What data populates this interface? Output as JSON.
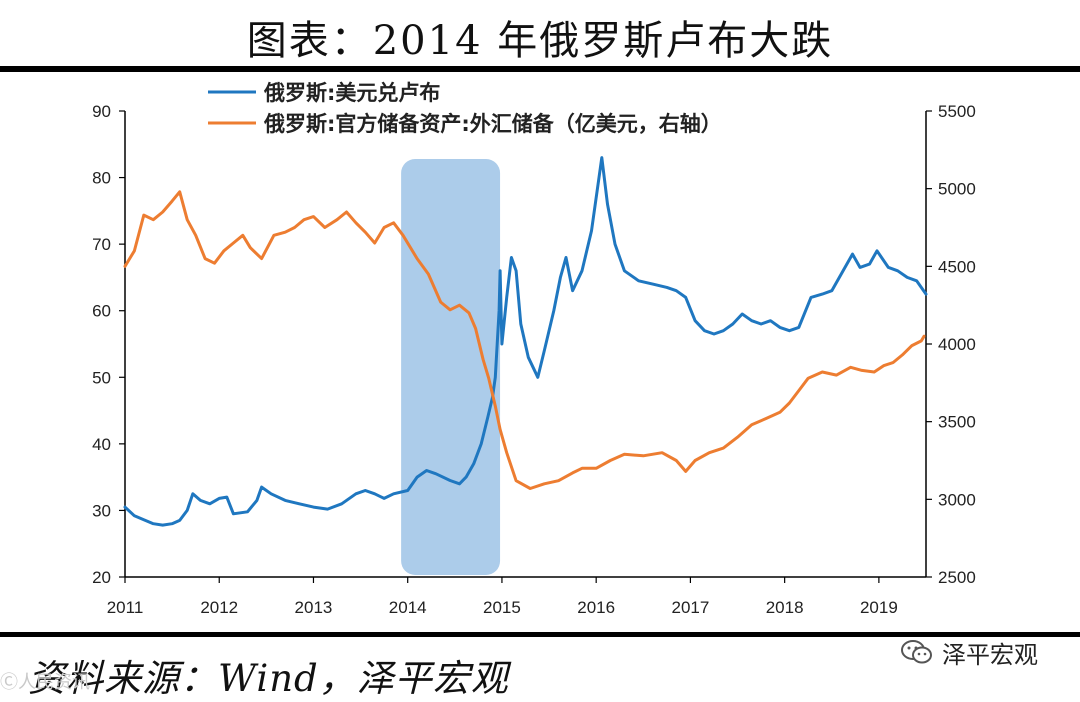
{
  "title": "图表：2014 年俄罗斯卢布大跌",
  "source": "资料来源：Wind，泽平宏观",
  "brand": {
    "name": "泽平宏观",
    "icon": "wechat-icon"
  },
  "watermark": "Ⓒ人民资讯",
  "chart_data": {
    "type": "line",
    "title": "图表：2014 年俄罗斯卢布大跌",
    "x_ticks": [
      "2011",
      "2012",
      "2013",
      "2014",
      "2015",
      "2016",
      "2017",
      "2018",
      "2019"
    ],
    "xlim": [
      2011.0,
      2019.5
    ],
    "y_left": {
      "ticks": [
        "20",
        "30",
        "40",
        "50",
        "60",
        "70",
        "80",
        "90"
      ],
      "ylim": [
        20,
        90
      ]
    },
    "y_right": {
      "ticks": [
        "2500",
        "3000",
        "3500",
        "4000",
        "4500",
        "5000",
        "5500"
      ],
      "ylim": [
        2500,
        5500
      ]
    },
    "highlight": {
      "from": 2013.93,
      "to": 2014.98,
      "color": "#9DC3E6"
    },
    "legend": {
      "placement": "top-left"
    },
    "series": [
      {
        "name": "俄罗斯:美元兑卢布",
        "axis": "left",
        "color": "#1F77C0",
        "points": [
          [
            2011.0,
            30.5
          ],
          [
            2011.1,
            29.2
          ],
          [
            2011.2,
            28.6
          ],
          [
            2011.3,
            28.0
          ],
          [
            2011.4,
            27.8
          ],
          [
            2011.5,
            28.0
          ],
          [
            2011.58,
            28.5
          ],
          [
            2011.66,
            30.0
          ],
          [
            2011.72,
            32.5
          ],
          [
            2011.8,
            31.5
          ],
          [
            2011.9,
            31.0
          ],
          [
            2012.0,
            31.8
          ],
          [
            2012.08,
            32.0
          ],
          [
            2012.15,
            29.5
          ],
          [
            2012.3,
            29.8
          ],
          [
            2012.4,
            31.5
          ],
          [
            2012.45,
            33.5
          ],
          [
            2012.55,
            32.5
          ],
          [
            2012.7,
            31.5
          ],
          [
            2012.85,
            31.0
          ],
          [
            2013.0,
            30.5
          ],
          [
            2013.15,
            30.2
          ],
          [
            2013.3,
            31.0
          ],
          [
            2013.45,
            32.5
          ],
          [
            2013.55,
            33.0
          ],
          [
            2013.65,
            32.5
          ],
          [
            2013.75,
            31.8
          ],
          [
            2013.85,
            32.5
          ],
          [
            2014.0,
            33.0
          ],
          [
            2014.1,
            35.0
          ],
          [
            2014.2,
            36.0
          ],
          [
            2014.3,
            35.5
          ],
          [
            2014.45,
            34.5
          ],
          [
            2014.55,
            34.0
          ],
          [
            2014.62,
            35.0
          ],
          [
            2014.7,
            37.0
          ],
          [
            2014.78,
            40.0
          ],
          [
            2014.85,
            44.0
          ],
          [
            2014.9,
            47.0
          ],
          [
            2014.93,
            50.0
          ],
          [
            2014.95,
            55.0
          ],
          [
            2014.97,
            60.0
          ],
          [
            2014.98,
            66.0
          ],
          [
            2015.0,
            55.0
          ],
          [
            2015.05,
            62.0
          ],
          [
            2015.1,
            68.0
          ],
          [
            2015.15,
            66.0
          ],
          [
            2015.2,
            58.0
          ],
          [
            2015.28,
            53.0
          ],
          [
            2015.38,
            50.0
          ],
          [
            2015.45,
            54.0
          ],
          [
            2015.55,
            60.0
          ],
          [
            2015.62,
            65.0
          ],
          [
            2015.68,
            68.0
          ],
          [
            2015.75,
            63.0
          ],
          [
            2015.85,
            66.0
          ],
          [
            2015.95,
            72.0
          ],
          [
            2016.03,
            80.0
          ],
          [
            2016.06,
            83.0
          ],
          [
            2016.12,
            76.0
          ],
          [
            2016.2,
            70.0
          ],
          [
            2016.3,
            66.0
          ],
          [
            2016.45,
            64.5
          ],
          [
            2016.6,
            64.0
          ],
          [
            2016.75,
            63.5
          ],
          [
            2016.85,
            63.0
          ],
          [
            2016.95,
            62.0
          ],
          [
            2017.05,
            58.5
          ],
          [
            2017.15,
            57.0
          ],
          [
            2017.25,
            56.5
          ],
          [
            2017.35,
            57.0
          ],
          [
            2017.45,
            58.0
          ],
          [
            2017.55,
            59.5
          ],
          [
            2017.65,
            58.5
          ],
          [
            2017.75,
            58.0
          ],
          [
            2017.85,
            58.5
          ],
          [
            2017.95,
            57.5
          ],
          [
            2018.05,
            57.0
          ],
          [
            2018.15,
            57.5
          ],
          [
            2018.28,
            62.0
          ],
          [
            2018.4,
            62.5
          ],
          [
            2018.5,
            63.0
          ],
          [
            2018.62,
            66.0
          ],
          [
            2018.72,
            68.5
          ],
          [
            2018.8,
            66.5
          ],
          [
            2018.9,
            67.0
          ],
          [
            2018.98,
            69.0
          ],
          [
            2019.1,
            66.5
          ],
          [
            2019.2,
            66.0
          ],
          [
            2019.3,
            65.0
          ],
          [
            2019.4,
            64.5
          ],
          [
            2019.5,
            62.5
          ]
        ]
      },
      {
        "name": "俄罗斯:官方储备资产:外汇储备（亿美元，右轴）",
        "axis": "right",
        "color": "#ED7D31",
        "points": [
          [
            2011.0,
            4500
          ],
          [
            2011.1,
            4600
          ],
          [
            2011.2,
            4830
          ],
          [
            2011.3,
            4800
          ],
          [
            2011.4,
            4850
          ],
          [
            2011.5,
            4920
          ],
          [
            2011.58,
            4980
          ],
          [
            2011.66,
            4800
          ],
          [
            2011.75,
            4700
          ],
          [
            2011.85,
            4550
          ],
          [
            2011.95,
            4520
          ],
          [
            2012.05,
            4600
          ],
          [
            2012.15,
            4650
          ],
          [
            2012.25,
            4700
          ],
          [
            2012.33,
            4620
          ],
          [
            2012.45,
            4550
          ],
          [
            2012.58,
            4700
          ],
          [
            2012.7,
            4720
          ],
          [
            2012.8,
            4750
          ],
          [
            2012.9,
            4800
          ],
          [
            2013.0,
            4820
          ],
          [
            2013.12,
            4750
          ],
          [
            2013.25,
            4800
          ],
          [
            2013.35,
            4850
          ],
          [
            2013.45,
            4780
          ],
          [
            2013.55,
            4720
          ],
          [
            2013.65,
            4650
          ],
          [
            2013.75,
            4750
          ],
          [
            2013.85,
            4780
          ],
          [
            2013.95,
            4700
          ],
          [
            2014.1,
            4550
          ],
          [
            2014.22,
            4450
          ],
          [
            2014.35,
            4270
          ],
          [
            2014.45,
            4220
          ],
          [
            2014.55,
            4250
          ],
          [
            2014.65,
            4200
          ],
          [
            2014.72,
            4100
          ],
          [
            2014.8,
            3900
          ],
          [
            2014.86,
            3780
          ],
          [
            2014.93,
            3600
          ],
          [
            2014.98,
            3450
          ],
          [
            2015.05,
            3300
          ],
          [
            2015.15,
            3120
          ],
          [
            2015.3,
            3070
          ],
          [
            2015.45,
            3100
          ],
          [
            2015.6,
            3120
          ],
          [
            2015.75,
            3170
          ],
          [
            2015.85,
            3200
          ],
          [
            2016.0,
            3200
          ],
          [
            2016.15,
            3250
          ],
          [
            2016.3,
            3290
          ],
          [
            2016.5,
            3280
          ],
          [
            2016.7,
            3300
          ],
          [
            2016.85,
            3250
          ],
          [
            2016.95,
            3180
          ],
          [
            2017.05,
            3250
          ],
          [
            2017.2,
            3300
          ],
          [
            2017.35,
            3330
          ],
          [
            2017.5,
            3400
          ],
          [
            2017.65,
            3480
          ],
          [
            2017.8,
            3520
          ],
          [
            2017.95,
            3560
          ],
          [
            2018.05,
            3620
          ],
          [
            2018.15,
            3700
          ],
          [
            2018.25,
            3780
          ],
          [
            2018.4,
            3820
          ],
          [
            2018.55,
            3800
          ],
          [
            2018.7,
            3850
          ],
          [
            2018.82,
            3830
          ],
          [
            2018.95,
            3820
          ],
          [
            2019.05,
            3860
          ],
          [
            2019.15,
            3880
          ],
          [
            2019.25,
            3930
          ],
          [
            2019.35,
            3990
          ],
          [
            2019.45,
            4020
          ],
          [
            2019.48,
            4050
          ]
        ]
      }
    ]
  }
}
